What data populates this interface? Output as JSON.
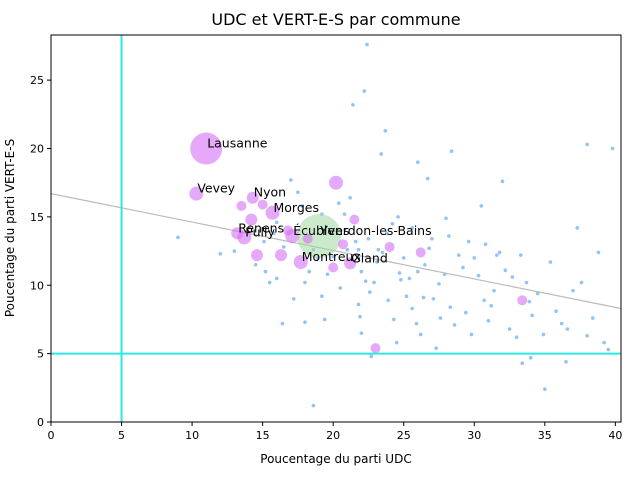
{
  "chart_data": {
    "type": "scatter",
    "title": "UDC et VERT-E-S par commune",
    "xlabel": "Poucentage du parti UDC",
    "ylabel": "Poucentage du parti VERT-E-S",
    "xlim": [
      0,
      40.4
    ],
    "ylim": [
      0,
      28.3
    ],
    "xticks": [
      "0",
      "5",
      "10",
      "15",
      "20",
      "25",
      "30",
      "35",
      "40"
    ],
    "yticks": [
      "0",
      "5",
      "10",
      "15",
      "20",
      "25"
    ],
    "grid": false,
    "legend": "none",
    "reference_lines": {
      "vertical_x": 5,
      "horizontal_y": 5,
      "color": "#2ee8e0"
    },
    "trend_line": {
      "x0": 0,
      "y0": 16.7,
      "x1": 40.4,
      "y1": 8.3,
      "color": "#bbbbbb"
    },
    "colors": {
      "small_points": "#7fb8f5",
      "large_points": "#d56ff5",
      "highlight_point": "#9fd8a0"
    },
    "large_points": [
      {
        "label": "Lausanne",
        "x": 11.0,
        "y": 20.0,
        "r": 16
      },
      {
        "label": "Vevey",
        "x": 10.3,
        "y": 16.7,
        "r": 7
      },
      {
        "label": "Nyon",
        "x": 14.3,
        "y": 16.4,
        "r": 6
      },
      {
        "label": "Morges",
        "x": 15.7,
        "y": 15.3,
        "r": 7
      },
      {
        "label": "Renens",
        "x": 13.2,
        "y": 13.8,
        "r": 6
      },
      {
        "label": "Pully",
        "x": 13.7,
        "y": 13.5,
        "r": 7
      },
      {
        "label": "Écublens",
        "x": 17.1,
        "y": 13.6,
        "r": 7
      },
      {
        "label": "Yverdon-les-Bains",
        "x": 19.0,
        "y": 13.6,
        "r": 22,
        "highlight": true
      },
      {
        "label": "Montreux",
        "x": 17.7,
        "y": 11.7,
        "r": 7
      },
      {
        "label": "Gland",
        "x": 21.2,
        "y": 11.6,
        "r": 6
      },
      {
        "label": "",
        "x": 20.2,
        "y": 17.5,
        "r": 7
      },
      {
        "label": "",
        "x": 14.2,
        "y": 14.8,
        "r": 6
      },
      {
        "label": "",
        "x": 14.6,
        "y": 12.2,
        "r": 6
      },
      {
        "label": "",
        "x": 16.3,
        "y": 12.2,
        "r": 6
      },
      {
        "label": "",
        "x": 18.2,
        "y": 13.4,
        "r": 5
      },
      {
        "label": "",
        "x": 20.0,
        "y": 11.3,
        "r": 5
      },
      {
        "label": "",
        "x": 23.0,
        "y": 5.4,
        "r": 5
      },
      {
        "label": "",
        "x": 24.0,
        "y": 12.8,
        "r": 5
      },
      {
        "label": "",
        "x": 26.2,
        "y": 12.4,
        "r": 5
      },
      {
        "label": "",
        "x": 21.5,
        "y": 14.8,
        "r": 5
      },
      {
        "label": "",
        "x": 20.7,
        "y": 13.0,
        "r": 5
      },
      {
        "label": "",
        "x": 16.8,
        "y": 14.0,
        "r": 5
      },
      {
        "label": "",
        "x": 33.4,
        "y": 8.9,
        "r": 5
      },
      {
        "label": "",
        "x": 15.0,
        "y": 15.9,
        "r": 5
      },
      {
        "label": "",
        "x": 13.5,
        "y": 15.8,
        "r": 5
      }
    ],
    "small_points": [
      [
        9.0,
        13.5
      ],
      [
        12.0,
        12.3
      ],
      [
        13.0,
        12.5
      ],
      [
        14.5,
        11.5
      ],
      [
        15.2,
        11.0
      ],
      [
        15.5,
        10.2
      ],
      [
        16.0,
        10.5
      ],
      [
        16.5,
        12.8
      ],
      [
        15.1,
        13.2
      ],
      [
        15.8,
        13.8
      ],
      [
        16.0,
        14.6
      ],
      [
        17.0,
        17.7
      ],
      [
        17.5,
        16.8
      ],
      [
        17.2,
        9.0
      ],
      [
        18.0,
        10.2
      ],
      [
        18.3,
        11.0
      ],
      [
        18.6,
        12.6
      ],
      [
        18.9,
        12.0
      ],
      [
        19.2,
        15.2
      ],
      [
        19.5,
        14.3
      ],
      [
        19.6,
        10.8
      ],
      [
        19.2,
        9.2
      ],
      [
        20.0,
        12.1
      ],
      [
        20.5,
        9.8
      ],
      [
        20.8,
        15.2
      ],
      [
        21.2,
        16.4
      ],
      [
        21.6,
        13.2
      ],
      [
        21.8,
        12.6
      ],
      [
        22.0,
        11.0
      ],
      [
        22.3,
        10.3
      ],
      [
        22.6,
        9.5
      ],
      [
        22.2,
        24.2
      ],
      [
        22.4,
        27.6
      ],
      [
        21.4,
        23.2
      ],
      [
        21.8,
        8.6
      ],
      [
        21.9,
        7.7
      ],
      [
        22.0,
        6.5
      ],
      [
        22.7,
        4.8
      ],
      [
        23.1,
        11.7
      ],
      [
        23.5,
        12.4
      ],
      [
        23.8,
        13.8
      ],
      [
        24.2,
        14.5
      ],
      [
        24.6,
        15.0
      ],
      [
        24.8,
        10.4
      ],
      [
        25.2,
        9.2
      ],
      [
        25.6,
        8.3
      ],
      [
        25.9,
        7.2
      ],
      [
        26.2,
        6.4
      ],
      [
        26.5,
        11.5
      ],
      [
        26.8,
        12.7
      ],
      [
        27.1,
        9.0
      ],
      [
        27.5,
        10.1
      ],
      [
        27.9,
        10.8
      ],
      [
        28.3,
        8.4
      ],
      [
        28.6,
        7.1
      ],
      [
        28.9,
        12.2
      ],
      [
        29.2,
        11.3
      ],
      [
        29.6,
        13.2
      ],
      [
        30.0,
        12.0
      ],
      [
        30.3,
        10.7
      ],
      [
        30.7,
        8.9
      ],
      [
        31.0,
        7.4
      ],
      [
        31.4,
        9.6
      ],
      [
        31.8,
        12.4
      ],
      [
        32.2,
        11.1
      ],
      [
        32.5,
        6.8
      ],
      [
        33.0,
        6.2
      ],
      [
        33.3,
        12.2
      ],
      [
        33.7,
        10.2
      ],
      [
        34.1,
        7.8
      ],
      [
        34.5,
        9.4
      ],
      [
        34.9,
        6.4
      ],
      [
        35.0,
        2.4
      ],
      [
        35.4,
        11.7
      ],
      [
        35.8,
        8.1
      ],
      [
        36.2,
        7.2
      ],
      [
        36.6,
        6.8
      ],
      [
        37.0,
        9.6
      ],
      [
        37.3,
        14.2
      ],
      [
        37.6,
        10.2
      ],
      [
        38.0,
        6.3
      ],
      [
        38.4,
        7.6
      ],
      [
        38.8,
        12.4
      ],
      [
        39.2,
        5.8
      ],
      [
        39.5,
        5.3
      ],
      [
        39.8,
        20.0
      ],
      [
        38.0,
        20.3
      ],
      [
        26.0,
        19.0
      ],
      [
        26.7,
        17.8
      ],
      [
        28.4,
        19.8
      ],
      [
        32.0,
        17.6
      ],
      [
        23.7,
        21.3
      ],
      [
        23.4,
        19.6
      ],
      [
        25.6,
        14.2
      ],
      [
        28.0,
        14.9
      ],
      [
        30.5,
        15.8
      ],
      [
        24.5,
        5.8
      ],
      [
        27.3,
        5.4
      ],
      [
        29.8,
        6.4
      ],
      [
        33.4,
        4.3
      ],
      [
        34.0,
        4.7
      ],
      [
        36.5,
        4.4
      ],
      [
        22.9,
        10.2
      ],
      [
        23.9,
        8.9
      ],
      [
        24.3,
        7.5
      ],
      [
        25.0,
        12.0
      ],
      [
        26.0,
        11.0
      ],
      [
        27.0,
        13.4
      ],
      [
        28.2,
        13.6
      ],
      [
        30.8,
        13.0
      ],
      [
        31.6,
        12.2
      ],
      [
        32.7,
        10.6
      ],
      [
        18.0,
        7.3
      ],
      [
        18.6,
        1.2
      ],
      [
        19.4,
        7.5
      ],
      [
        16.4,
        7.2
      ],
      [
        17.8,
        15.8
      ],
      [
        20.4,
        16.0
      ],
      [
        21.0,
        12.6
      ],
      [
        22.5,
        13.4
      ],
      [
        23.2,
        12.6
      ],
      [
        24.7,
        10.9
      ],
      [
        25.4,
        10.5
      ],
      [
        26.4,
        9.1
      ],
      [
        27.6,
        7.6
      ],
      [
        29.4,
        8.0
      ],
      [
        31.2,
        8.5
      ],
      [
        33.9,
        8.8
      ]
    ],
    "annotations": [
      "Lausanne",
      "Vevey",
      "Nyon",
      "Morges",
      "Renens",
      "Pully",
      "Écublens",
      "Yverdon-les-Bains",
      "Montreux",
      "Gland"
    ]
  }
}
